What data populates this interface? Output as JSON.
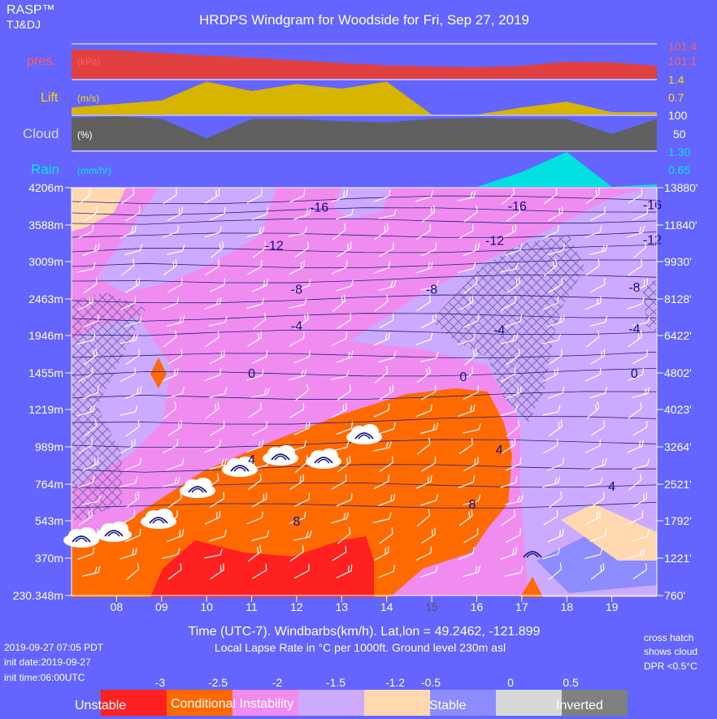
{
  "header": {
    "brand": "RASP™",
    "brand_sub": "TJ&DJ",
    "title": "HRDPS Windgram for Woodside for Fri, Sep 27, 2019"
  },
  "panels": {
    "pres": {
      "label": "pres.",
      "unit": "(kPa)",
      "scale_top": "101.4",
      "scale_bottom": "101.1"
    },
    "lift": {
      "label": "Lift",
      "unit": "(m/s)",
      "scale_top": "1.4",
      "scale_bottom": "0.7"
    },
    "cloud": {
      "label": "Cloud",
      "unit": "(%)",
      "scale_top": "100",
      "scale_bottom": "50"
    },
    "rain": {
      "label": "Rain",
      "unit": "(mm/hr)",
      "scale_top": "1.30",
      "scale_bottom": "0.65"
    }
  },
  "footer": {
    "xaxis_label": "Time (UTC-7). Windbarbs(km/h). Lat,lon = 49.2462, -121.899",
    "subtitle": "Local Lapse Rate in °C per 1000ft.   Ground level 230m asl",
    "run_time": "2019-09-27 07:05 PDT",
    "init_date": "init date:2019-09-27",
    "init_time": "init time:06:00UTC",
    "note_line1": "cross hatch",
    "note_line2": "shows cloud",
    "note_line3": "DPR <0.5°C"
  },
  "legend": {
    "ticks": [
      "-3",
      "-2.5",
      "-2",
      "-1.5",
      "-1.2",
      "-0.5",
      "0",
      "0.5"
    ],
    "labels": [
      "Unstable",
      "Conditional Instability",
      "Stable",
      "Inverted"
    ],
    "colors": [
      "#ff2020",
      "#ff6a00",
      "#f08cf0",
      "#ccaaff",
      "#ffd8b0",
      "#8c8cff",
      "#d8d8d8",
      "#808080"
    ]
  },
  "colors": {
    "background": "#6464ff",
    "pres": "#e04040",
    "lift": "#d6b400",
    "cloud": "#606060",
    "rain": "#00e0e0",
    "scale_text": "#ff6060",
    "lift_text": "#ffd700",
    "isotherm": "#202080"
  },
  "chart_data": {
    "type": "windgram",
    "x": {
      "ticks": [
        "08",
        "09",
        "10",
        "11",
        "12",
        "13",
        "14",
        "15",
        "16",
        "17",
        "18",
        "19"
      ],
      "range": [
        7,
        20
      ]
    },
    "y_left": [
      "4206m",
      "3588m",
      "3009m",
      "2463m",
      "1946m",
      "1455m",
      "1219m",
      "989m",
      "764m",
      "543m",
      "370m",
      "230.348m"
    ],
    "y_right": [
      "13880'",
      "11840'",
      "9930'",
      "8128'",
      "6422'",
      "4802'",
      "4023'",
      "3264'",
      "2521'",
      "1792'",
      "1221'",
      "760'"
    ],
    "pressure_kpa": {
      "x": [
        7,
        8,
        9,
        10,
        11,
        12,
        13,
        14,
        15,
        16,
        17,
        18,
        19,
        20
      ],
      "values": [
        101.38,
        101.37,
        101.33,
        101.29,
        101.26,
        101.22,
        101.18,
        101.15,
        101.13,
        101.12,
        101.14,
        101.2,
        101.19,
        101.14
      ]
    },
    "lift_ms": {
      "x": [
        7,
        8,
        9,
        10,
        11,
        12,
        13,
        14,
        15,
        16,
        17,
        18,
        19,
        20
      ],
      "values": [
        0.3,
        0.45,
        0.6,
        1.4,
        1.0,
        1.3,
        1.1,
        1.4,
        0.0,
        0.0,
        0.3,
        0.55,
        0.1,
        0.1
      ]
    },
    "cloud_pct": {
      "x": [
        7,
        8,
        9,
        10,
        11,
        12,
        13,
        14,
        15,
        16,
        17,
        18,
        19,
        20
      ],
      "values": [
        95,
        100,
        92,
        35,
        92,
        92,
        85,
        82,
        92,
        95,
        92,
        92,
        48,
        92
      ]
    },
    "rain_mmhr": {
      "x": [
        7,
        15,
        16,
        17,
        18,
        19,
        20
      ],
      "values": [
        0,
        0,
        0,
        0.55,
        1.3,
        0.0,
        0.1
      ]
    },
    "isotherms": [
      {
        "label": "-16",
        "x": 12.5,
        "y": 3880
      },
      {
        "label": "-16",
        "x": 16.9,
        "y": 3900
      },
      {
        "label": "-16",
        "x": 19.9,
        "y": 3920
      },
      {
        "label": "-12",
        "x": 11.5,
        "y": 3260
      },
      {
        "label": "-12",
        "x": 16.4,
        "y": 3340
      },
      {
        "label": "-12",
        "x": 19.9,
        "y": 3350
      },
      {
        "label": "-8",
        "x": 12.0,
        "y": 2600
      },
      {
        "label": "-8",
        "x": 15.0,
        "y": 2600
      },
      {
        "label": "-8",
        "x": 19.5,
        "y": 2630
      },
      {
        "label": "-4",
        "x": 12.0,
        "y": 2080
      },
      {
        "label": "-4",
        "x": 16.5,
        "y": 2020
      },
      {
        "label": "-4",
        "x": 19.5,
        "y": 2040
      },
      {
        "label": "0",
        "x": 11.0,
        "y": 1450
      },
      {
        "label": "0",
        "x": 15.7,
        "y": 1430
      },
      {
        "label": "0",
        "x": 19.5,
        "y": 1450
      },
      {
        "label": "4",
        "x": 11.0,
        "y": 910
      },
      {
        "label": "4",
        "x": 16.5,
        "y": 970
      },
      {
        "label": "4",
        "x": 19.0,
        "y": 750
      },
      {
        "label": "8",
        "x": 12.0,
        "y": 540
      },
      {
        "label": "8",
        "x": 15.9,
        "y": 640
      }
    ]
  }
}
